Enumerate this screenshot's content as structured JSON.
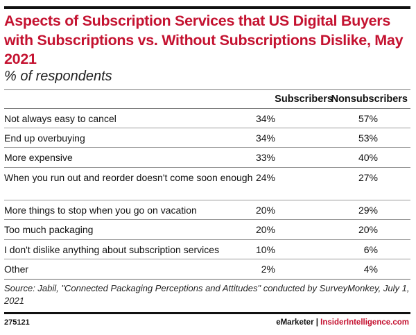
{
  "chart_data": {
    "type": "table",
    "title": "Aspects of Subscription Services that US Digital Buyers with Subscriptions vs. Without Subscriptions Dislike, May 2021",
    "subtitle": "% of respondents",
    "columns": [
      "Subscribers",
      "Nonsubscribers"
    ],
    "rows": [
      {
        "label": "Not always easy to cancel",
        "values": [
          "34%",
          "57%"
        ]
      },
      {
        "label": "End up overbuying",
        "values": [
          "34%",
          "53%"
        ]
      },
      {
        "label": "More expensive",
        "values": [
          "33%",
          "40%"
        ]
      },
      {
        "label": "When you run out and reorder doesn't come soon enough",
        "values": [
          "24%",
          "27%"
        ]
      },
      {
        "label": "More things to stop when you go on vacation",
        "values": [
          "20%",
          "29%"
        ]
      },
      {
        "label": "Too much packaging",
        "values": [
          "20%",
          "20%"
        ]
      },
      {
        "label": "I don't dislike anything about subscription services",
        "values": [
          "10%",
          "6%"
        ]
      },
      {
        "label": "Other",
        "values": [
          "2%",
          "4%"
        ]
      }
    ],
    "source": "Source: Jabil, \"Connected Packaging Perceptions and Attitudes\" conducted by SurveyMonkey, July 1, 2021",
    "chart_id": "275121",
    "brand_left": "eMarketer",
    "brand_sep": "|",
    "brand_right": "InsiderIntelligence.com",
    "accent_color": "#c41230"
  }
}
